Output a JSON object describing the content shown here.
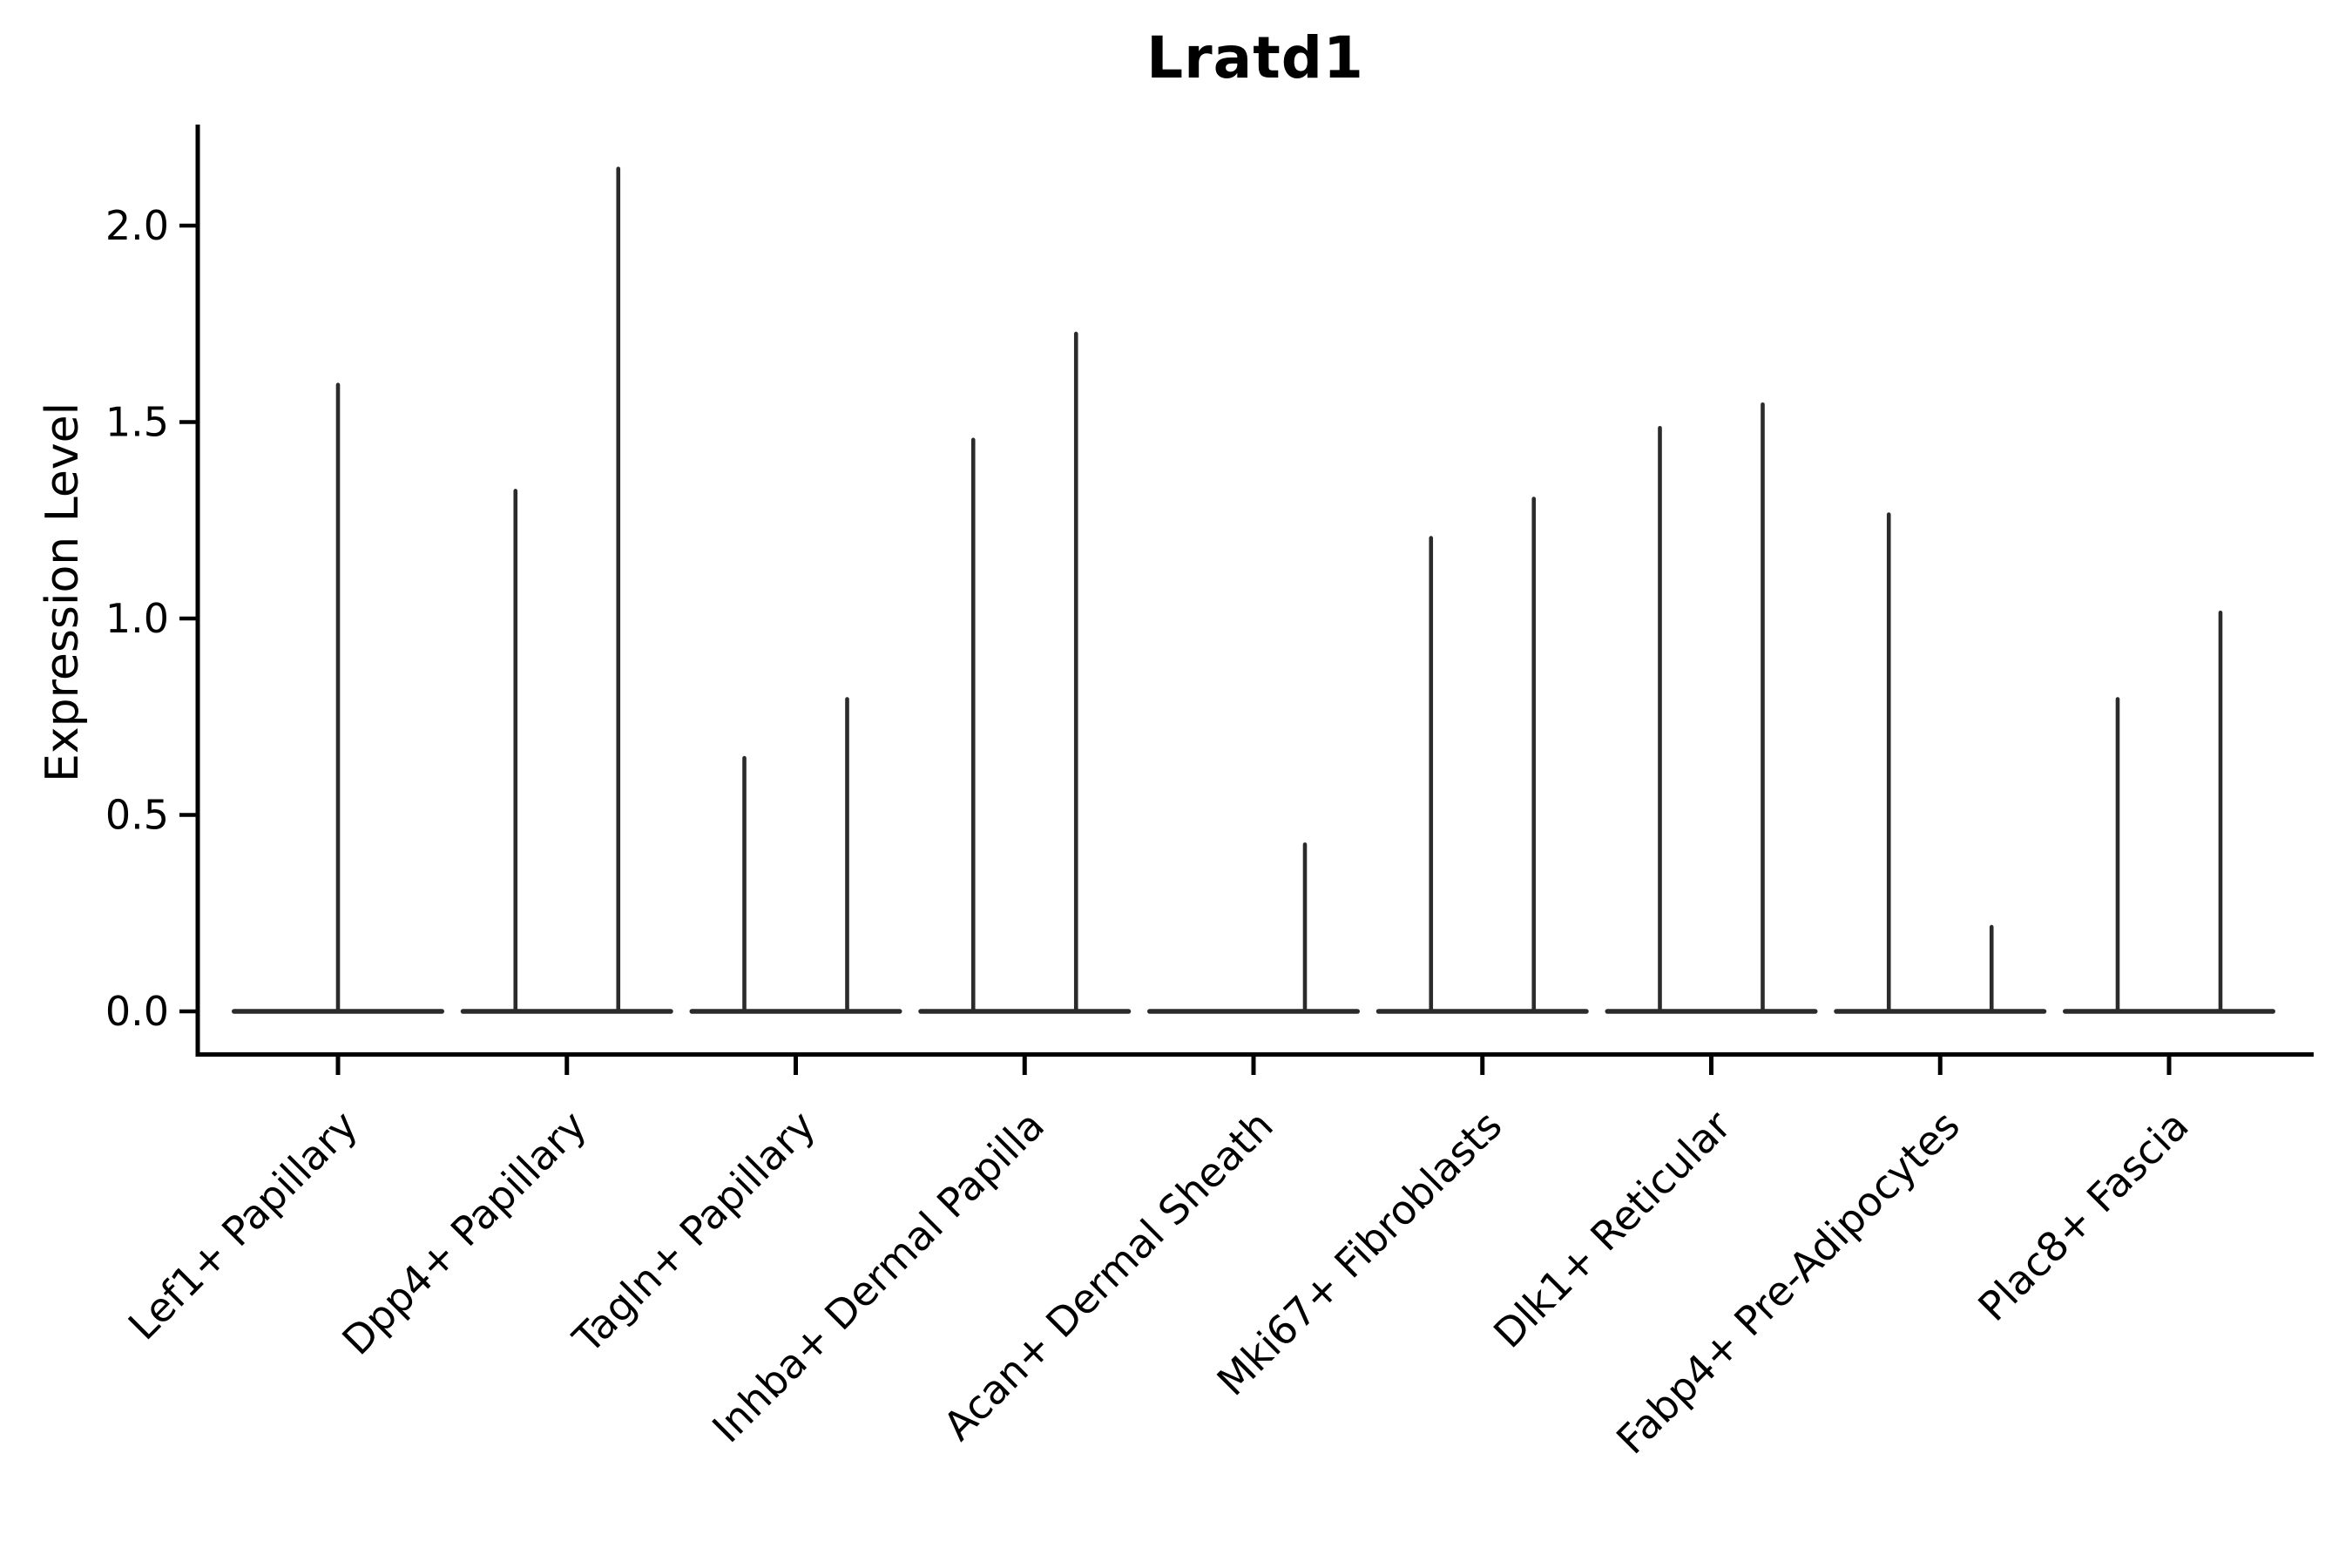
{
  "figure": {
    "title": "Lratd1"
  },
  "axes": {
    "ylabel": "Expression Level",
    "xlabel": "",
    "ytick_labels": [
      "0.0",
      "0.5",
      "1.0",
      "1.5",
      "2.0"
    ]
  },
  "chart_data": {
    "type": "violin",
    "title": "Lratd1",
    "ylabel": "Expression Level",
    "xlabel": "",
    "ylim": [
      -0.1,
      2.26
    ],
    "yticks": [
      0.0,
      0.5,
      1.0,
      1.5,
      2.0
    ],
    "grid": false,
    "legend": "none",
    "description": "Needle-thin violins collapsed at expression 0; each category shows a flat baseline at 0 with one or two vertical density spikes. 'max' is the spike top in Expression Level units; position is the spike placement within the category slot.",
    "categories": [
      "Lef1+ Papillary",
      "Dpp4+ Papillary",
      "Tagln+ Papillary",
      "Inhba+ Dermal Papilla",
      "Acan+ Dermal Sheath",
      "Mki67+ Fibroblasts",
      "Dlk1+ Reticular",
      "Fabp4+ Pre-Adipocytes",
      "Plac8+ Fascia"
    ],
    "violins": [
      {
        "category": "Lef1+ Papillary",
        "spikes": [
          {
            "position": "center",
            "max": 1.6
          }
        ]
      },
      {
        "category": "Dpp4+ Papillary",
        "spikes": [
          {
            "position": "left",
            "max": 1.33
          },
          {
            "position": "right",
            "max": 2.15
          }
        ]
      },
      {
        "category": "Tagln+ Papillary",
        "spikes": [
          {
            "position": "left",
            "max": 0.65
          },
          {
            "position": "right",
            "max": 0.8
          }
        ]
      },
      {
        "category": "Inhba+ Dermal Papilla",
        "spikes": [
          {
            "position": "left",
            "max": 1.46
          },
          {
            "position": "right",
            "max": 1.73
          }
        ]
      },
      {
        "category": "Acan+ Dermal Sheath",
        "spikes": [
          {
            "position": "right",
            "max": 0.43
          }
        ]
      },
      {
        "category": "Mki67+ Fibroblasts",
        "spikes": [
          {
            "position": "left",
            "max": 1.21
          },
          {
            "position": "right",
            "max": 1.31
          }
        ]
      },
      {
        "category": "Dlk1+ Reticular",
        "spikes": [
          {
            "position": "left",
            "max": 1.49
          },
          {
            "position": "right",
            "max": 1.55
          }
        ]
      },
      {
        "category": "Fabp4+ Pre-Adipocytes",
        "spikes": [
          {
            "position": "left",
            "max": 1.27
          },
          {
            "position": "right",
            "max": 0.22
          }
        ]
      },
      {
        "category": "Plac8+ Fascia",
        "spikes": [
          {
            "position": "left",
            "max": 0.8
          },
          {
            "position": "right",
            "max": 1.02
          }
        ]
      }
    ],
    "colors": {
      "violin_stroke": "#2b2b2b",
      "axis": "#000000",
      "text": "#000000",
      "background": "#ffffff"
    }
  }
}
